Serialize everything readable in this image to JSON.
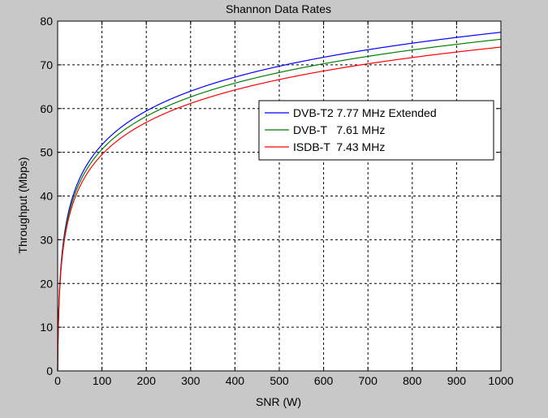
{
  "chart_data": {
    "type": "line",
    "title": "Shannon Data Rates",
    "xlabel": "SNR (W)",
    "ylabel": "Throughput (Mbps)",
    "xlim": [
      0,
      1000
    ],
    "ylim": [
      0,
      80
    ],
    "x_ticks": [
      0,
      100,
      200,
      300,
      400,
      500,
      600,
      700,
      800,
      900,
      1000
    ],
    "y_ticks": [
      0,
      10,
      20,
      30,
      40,
      50,
      60,
      70,
      80
    ],
    "grid": true,
    "legend_position": "right",
    "formula_note": "",
    "series": [
      {
        "name": "DVB-T2 7.77 MHz Extended",
        "color": "#0000ff",
        "bandwidth_mhz": 7.77
      },
      {
        "name": "DVB-T   7.61 MHz",
        "color": "#008000",
        "bandwidth_mhz": 7.61
      },
      {
        "name": "ISDB-T  7.43 MHz",
        "color": "#ff0000",
        "bandwidth_mhz": 7.43
      }
    ]
  }
}
